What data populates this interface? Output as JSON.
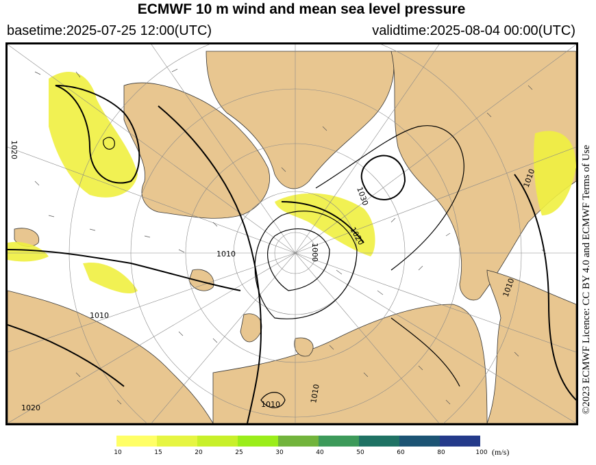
{
  "header": {
    "title": "ECMWF 10 m wind and mean sea level pressure",
    "basetime": "basetime:2025-07-25 12:00(UTC)",
    "validtime": "validtime:2025-08-04 00:00(UTC)"
  },
  "credit": "©2023 ECMWF Licence: CC BY 4.0 and ECMWF Terms of Use",
  "isobar_labels": [
    "1020",
    "1010",
    "1030",
    "1020",
    "1010",
    "1010",
    "1000",
    "1010",
    "1010",
    "1020",
    "1010"
  ],
  "colorbar": {
    "unit": "(m/s)",
    "ticks": [
      "10",
      "15",
      "20",
      "25",
      "30",
      "40",
      "50",
      "60",
      "80",
      "100"
    ],
    "colors": [
      "#ffff66",
      "#e6f542",
      "#c8f02a",
      "#9bed1a",
      "#72b43c",
      "#3d9a5a",
      "#1f7264",
      "#1c5474",
      "#243a8a",
      "#2e2ea5"
    ]
  },
  "colors": {
    "land": "#e8c690",
    "sea": "#ffffff",
    "strong_wind": "#f0f040",
    "isobar": "#000000",
    "grid": "#888888"
  }
}
